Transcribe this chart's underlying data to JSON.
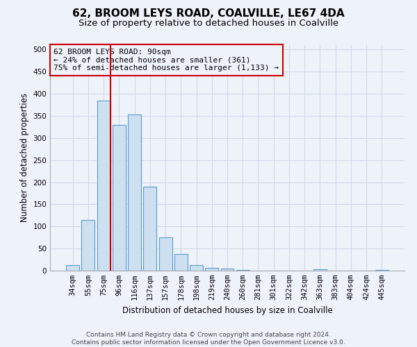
{
  "title": "62, BROOM LEYS ROAD, COALVILLE, LE67 4DA",
  "subtitle": "Size of property relative to detached houses in Coalville",
  "xlabel": "Distribution of detached houses by size in Coalville",
  "ylabel": "Number of detached properties",
  "categories": [
    "34sqm",
    "55sqm",
    "75sqm",
    "96sqm",
    "116sqm",
    "137sqm",
    "157sqm",
    "178sqm",
    "198sqm",
    "219sqm",
    "240sqm",
    "260sqm",
    "281sqm",
    "301sqm",
    "322sqm",
    "342sqm",
    "363sqm",
    "383sqm",
    "404sqm",
    "424sqm",
    "445sqm"
  ],
  "values": [
    12,
    115,
    385,
    330,
    353,
    190,
    76,
    37,
    13,
    7,
    4,
    1,
    0,
    0,
    0,
    0,
    3,
    0,
    0,
    0,
    2
  ],
  "bar_color": "#cce0f0",
  "bar_edge_color": "#5b9bd5",
  "annotation_text": "62 BROOM LEYS ROAD: 90sqm\n← 24% of detached houses are smaller (361)\n75% of semi-detached houses are larger (1,133) →",
  "annotation_box_color": "#cc0000",
  "grid_color": "#d0d8e8",
  "background_color": "#eef2f9",
  "ylim": [
    0,
    510
  ],
  "yticks": [
    0,
    50,
    100,
    150,
    200,
    250,
    300,
    350,
    400,
    450,
    500
  ],
  "footer": "Contains HM Land Registry data © Crown copyright and database right 2024.\nContains public sector information licensed under the Open Government Licence v3.0.",
  "title_fontsize": 11,
  "subtitle_fontsize": 9.5,
  "axis_label_fontsize": 8.5,
  "tick_fontsize": 7.5,
  "annotation_fontsize": 8
}
